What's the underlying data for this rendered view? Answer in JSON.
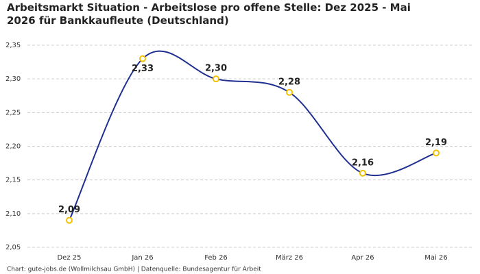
{
  "chart_data": {
    "type": "line",
    "title": "Arbeitsmarkt Situation - Arbeitslose pro offene Stelle: Dez 2025 - Mai 2026 für Bankkaufleute (Deutschland)",
    "source": "Chart: gute-jobs.de (Wollmilchsau GmbH) | Datenquelle: Bundesagentur für Arbeit",
    "categories": [
      "Dez 25",
      "Jan 26",
      "Feb 26",
      "März 26",
      "Apr 26",
      "Mai 26"
    ],
    "series": [
      {
        "color": "#1f2f8f",
        "marker_color": "#f2c200",
        "values": [
          2.09,
          2.33,
          2.3,
          2.28,
          2.16,
          2.19
        ],
        "value_labels": [
          "2,09",
          "2,33",
          "2,30",
          "2,28",
          "2,16",
          "2,19"
        ]
      }
    ],
    "ylim": [
      2.05,
      2.35
    ],
    "yticks": [
      {
        "value": 2.05,
        "label": "2,05"
      },
      {
        "value": 2.1,
        "label": "2,10"
      },
      {
        "value": 2.15,
        "label": "2,15"
      },
      {
        "value": 2.2,
        "label": "2,20"
      },
      {
        "value": 2.25,
        "label": "2,25"
      },
      {
        "value": 2.3,
        "label": "2,30"
      },
      {
        "value": 2.35,
        "label": "2,35"
      }
    ],
    "grid": true
  }
}
